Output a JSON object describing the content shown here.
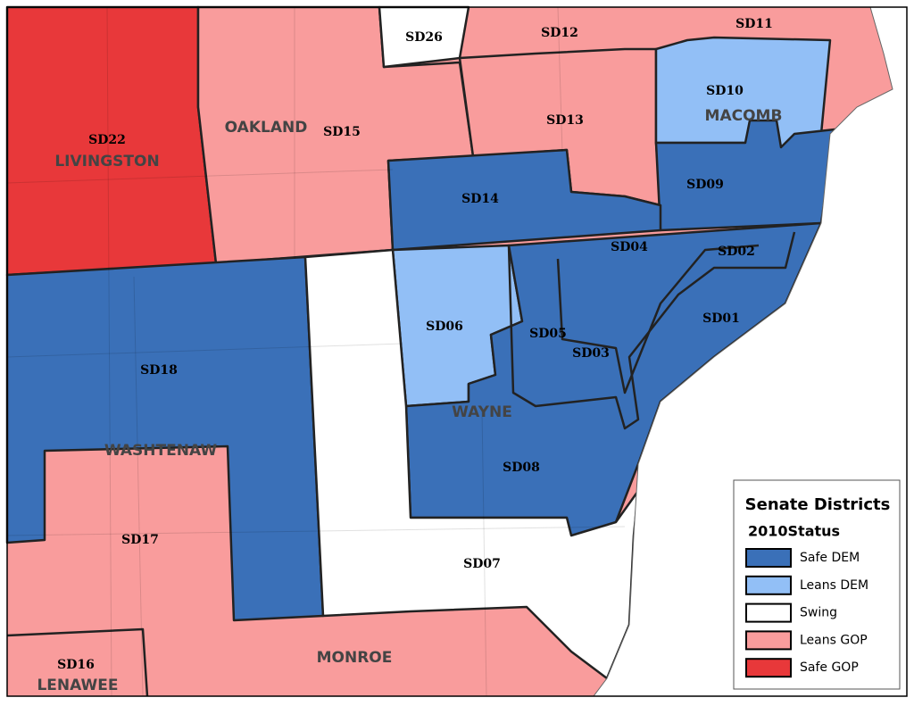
{
  "map": {
    "district_labels": [
      "SD22",
      "SD26",
      "SD12",
      "SD11",
      "SD10",
      "SD15",
      "SD13",
      "SD14",
      "SD09",
      "SD04",
      "SD02",
      "SD01",
      "SD06",
      "SD05",
      "SD03",
      "SD18",
      "SD08",
      "SD17",
      "SD07",
      "SD16"
    ],
    "county_labels": [
      "LIVINGSTON",
      "OAKLAND",
      "MACOMB",
      "WAYNE",
      "WASHTENAW",
      "MONROE",
      "LENAWEE"
    ],
    "legend": {
      "title": "Senate Districts",
      "subtitle": "2010Status",
      "items": [
        {
          "label": "Safe DEM",
          "color": "#3a70b8"
        },
        {
          "label": "Leans DEM",
          "color": "#92bff6"
        },
        {
          "label": "Swing",
          "color": "#ffffff"
        },
        {
          "label": "Leans GOP",
          "color": "#f99c9c"
        },
        {
          "label": "Safe GOP",
          "color": "#e8383a"
        }
      ]
    }
  }
}
